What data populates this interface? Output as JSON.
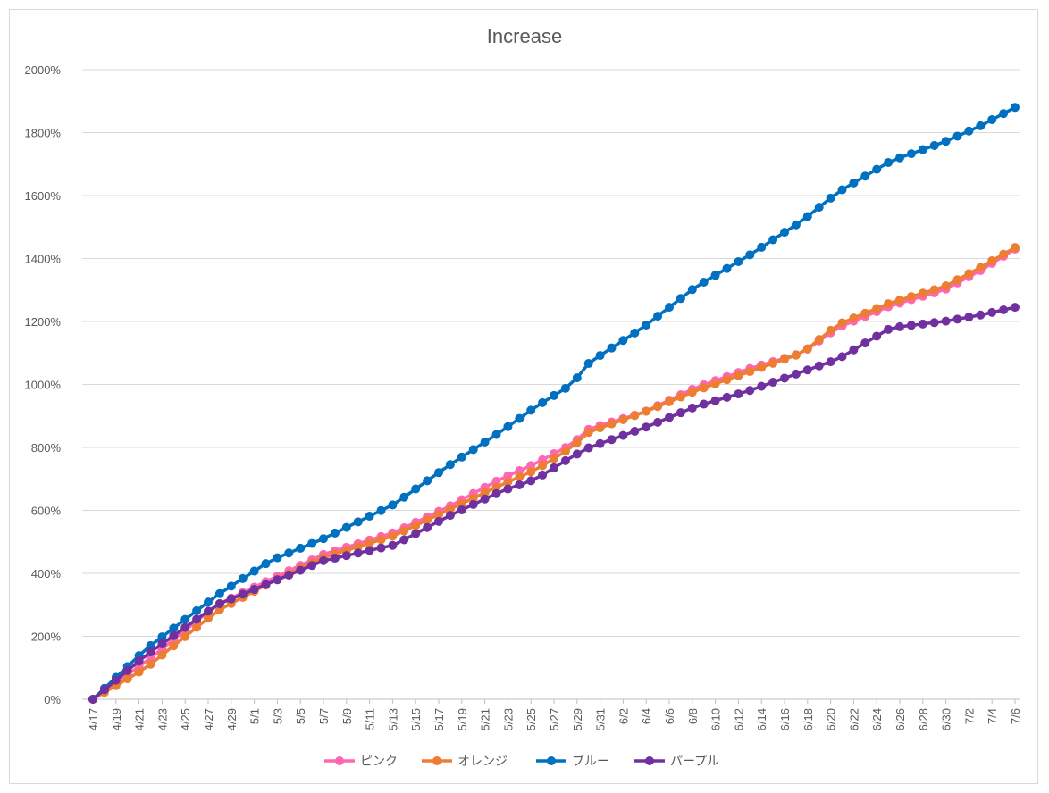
{
  "chart_data": {
    "type": "line",
    "title": "Increase",
    "xlabel": "",
    "ylabel": "",
    "ylim": [
      0,
      20
    ],
    "y_ticks": [
      "0%",
      "200%",
      "400%",
      "600%",
      "800%",
      "1000%",
      "1200%",
      "1400%",
      "1600%",
      "1800%",
      "2000%"
    ],
    "x_start": "4/17",
    "x_end": "7/6",
    "x_tick_labels": [
      "4/17",
      "4/19",
      "4/21",
      "4/23",
      "4/25",
      "4/27",
      "4/29",
      "5/1",
      "5/3",
      "5/5",
      "5/7",
      "5/9",
      "5/11",
      "5/13",
      "5/15",
      "5/17",
      "5/19",
      "5/21",
      "5/23",
      "5/25",
      "5/27",
      "5/29",
      "5/31",
      "6/2",
      "6/4",
      "6/6",
      "6/8",
      "6/10",
      "6/12",
      "6/14",
      "6/16",
      "6/18",
      "6/20",
      "6/22",
      "6/24",
      "6/26",
      "6/28",
      "6/30",
      "7/2",
      "7/4",
      "7/6"
    ],
    "grid": true,
    "legend_position": "bottom",
    "series": [
      {
        "name": "ピンク",
        "color": "#ff66b3",
        "values": [
          [
            0,
            0
          ],
          [
            6,
            1.2
          ],
          [
            14,
            3.0
          ],
          [
            20,
            3.8
          ],
          [
            26,
            4.6
          ],
          [
            34,
            5.3
          ],
          [
            40,
            6.1
          ],
          [
            46,
            7.0
          ],
          [
            50,
            7.5
          ],
          [
            54,
            8.1
          ],
          [
            56,
            8.6
          ],
          [
            62,
            9.1
          ],
          [
            68,
            9.9
          ],
          [
            74,
            10.5
          ],
          [
            80,
            11.0
          ],
          [
            84,
            11.8
          ],
          [
            90,
            12.5
          ],
          [
            96,
            13.0
          ],
          [
            100,
            13.6
          ],
          [
            104,
            14.3
          ]
        ]
      },
      {
        "name": "オレンジ",
        "color": "#ed7d31",
        "values": [
          [
            0,
            0
          ],
          [
            6,
            1.0
          ],
          [
            14,
            2.8
          ],
          [
            20,
            3.7
          ],
          [
            26,
            4.5
          ],
          [
            34,
            5.2
          ],
          [
            40,
            6.0
          ],
          [
            46,
            6.8
          ],
          [
            50,
            7.3
          ],
          [
            54,
            8.0
          ],
          [
            56,
            8.5
          ],
          [
            62,
            9.1
          ],
          [
            68,
            9.8
          ],
          [
            74,
            10.4
          ],
          [
            80,
            11.0
          ],
          [
            84,
            11.9
          ],
          [
            90,
            12.6
          ],
          [
            96,
            13.1
          ],
          [
            100,
            13.7
          ],
          [
            104,
            14.35
          ]
        ]
      },
      {
        "name": "ブルー",
        "color": "#0070c0",
        "values": [
          [
            0,
            0
          ],
          [
            6,
            1.6
          ],
          [
            14,
            3.3
          ],
          [
            20,
            4.4
          ],
          [
            26,
            5.1
          ],
          [
            34,
            6.2
          ],
          [
            40,
            7.4
          ],
          [
            46,
            8.5
          ],
          [
            50,
            9.3
          ],
          [
            54,
            10.0
          ],
          [
            56,
            10.7
          ],
          [
            62,
            11.8
          ],
          [
            68,
            13.1
          ],
          [
            74,
            14.1
          ],
          [
            80,
            15.2
          ],
          [
            84,
            16.1
          ],
          [
            90,
            17.1
          ],
          [
            96,
            17.7
          ],
          [
            100,
            18.2
          ],
          [
            104,
            18.8
          ]
        ]
      },
      {
        "name": "パープル",
        "color": "#7030a0",
        "values": [
          [
            0,
            0
          ],
          [
            6,
            1.4
          ],
          [
            14,
            3.0
          ],
          [
            20,
            3.7
          ],
          [
            26,
            4.4
          ],
          [
            34,
            4.9
          ],
          [
            40,
            5.8
          ],
          [
            46,
            6.6
          ],
          [
            50,
            7.0
          ],
          [
            54,
            7.7
          ],
          [
            56,
            8.0
          ],
          [
            62,
            8.6
          ],
          [
            68,
            9.3
          ],
          [
            74,
            9.8
          ],
          [
            80,
            10.4
          ],
          [
            84,
            10.8
          ],
          [
            90,
            11.8
          ],
          [
            96,
            12.0
          ],
          [
            100,
            12.2
          ],
          [
            104,
            12.45
          ]
        ]
      }
    ]
  }
}
